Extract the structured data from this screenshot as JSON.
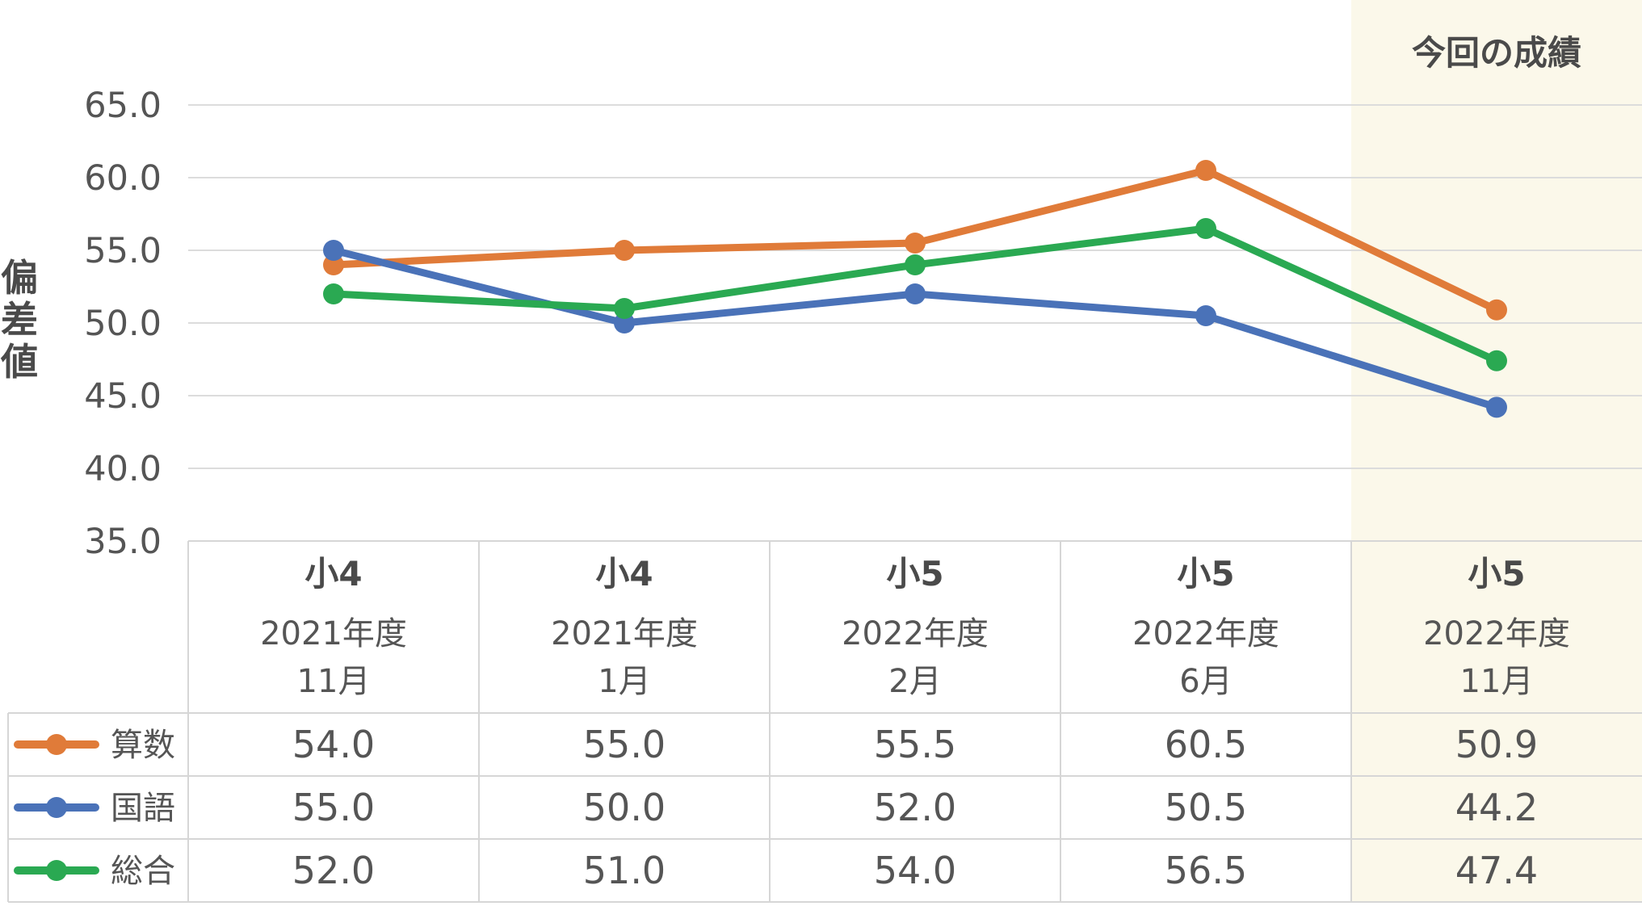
{
  "chart_data": {
    "type": "line",
    "ylabel": "偏差値",
    "ylim": [
      35,
      65
    ],
    "yticks": [
      "65.0",
      "60.0",
      "55.0",
      "50.0",
      "45.0",
      "40.0",
      "35.0"
    ],
    "grid": true,
    "highlight": {
      "label": "今回の成績",
      "category_index": 4,
      "color": "#fbf8ea"
    },
    "categories": [
      {
        "grade": "小4",
        "year": "2021年度",
        "month": "11月"
      },
      {
        "grade": "小4",
        "year": "2021年度",
        "month": "1月"
      },
      {
        "grade": "小5",
        "year": "2022年度",
        "month": "2月"
      },
      {
        "grade": "小5",
        "year": "2022年度",
        "month": "6月"
      },
      {
        "grade": "小5",
        "year": "2022年度",
        "month": "11月"
      }
    ],
    "series": [
      {
        "name": "算数",
        "color": "#e07b39",
        "values": [
          54.0,
          55.0,
          55.5,
          60.5,
          50.9
        ],
        "labels": [
          "54.0",
          "55.0",
          "55.5",
          "60.5",
          "50.9"
        ]
      },
      {
        "name": "国語",
        "color": "#4a72b8",
        "values": [
          55.0,
          50.0,
          52.0,
          50.5,
          44.2
        ],
        "labels": [
          "55.0",
          "50.0",
          "52.0",
          "50.5",
          "44.2"
        ]
      },
      {
        "name": "総合",
        "color": "#2aa952",
        "values": [
          52.0,
          51.0,
          54.0,
          56.5,
          47.4
        ],
        "labels": [
          "52.0",
          "51.0",
          "54.0",
          "56.5",
          "47.4"
        ]
      }
    ]
  }
}
